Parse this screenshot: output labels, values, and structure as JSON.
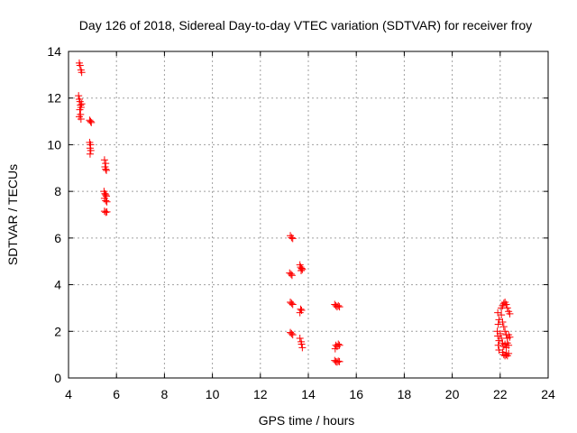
{
  "chart_data": {
    "type": "scatter",
    "title": "Day 126 of 2018, Sidereal Day-to-day VTEC variation (SDTVAR) for receiver froy",
    "xlabel": "GPS time / hours",
    "ylabel": "SDTVAR / TECUs",
    "xlim": [
      4,
      24
    ],
    "ylim": [
      0,
      14
    ],
    "xticks": [
      4,
      6,
      8,
      10,
      12,
      14,
      16,
      18,
      20,
      22,
      24
    ],
    "yticks": [
      0,
      2,
      4,
      6,
      8,
      10,
      12,
      14
    ],
    "grid": true,
    "marker": "plus",
    "color": "#ff0000",
    "series": [
      {
        "name": "SDTVAR",
        "points": [
          [
            4.45,
            13.5
          ],
          [
            4.48,
            13.4
          ],
          [
            4.52,
            13.2
          ],
          [
            4.55,
            13.1
          ],
          [
            4.42,
            12.1
          ],
          [
            4.45,
            11.95
          ],
          [
            4.48,
            11.85
          ],
          [
            4.5,
            11.7
          ],
          [
            4.52,
            11.6
          ],
          [
            4.55,
            11.75
          ],
          [
            4.47,
            11.5
          ],
          [
            4.5,
            11.3
          ],
          [
            4.45,
            11.2
          ],
          [
            4.52,
            11.1
          ],
          [
            4.88,
            11.05
          ],
          [
            4.92,
            11.0
          ],
          [
            4.95,
            10.95
          ],
          [
            4.88,
            10.1
          ],
          [
            4.92,
            10.0
          ],
          [
            4.9,
            9.85
          ],
          [
            4.93,
            9.75
          ],
          [
            4.9,
            9.6
          ],
          [
            5.5,
            9.35
          ],
          [
            5.55,
            9.2
          ],
          [
            5.52,
            9.05
          ],
          [
            5.55,
            8.95
          ],
          [
            5.58,
            8.9
          ],
          [
            5.48,
            8.0
          ],
          [
            5.52,
            7.9
          ],
          [
            5.55,
            7.85
          ],
          [
            5.58,
            7.8
          ],
          [
            5.5,
            7.7
          ],
          [
            5.55,
            7.6
          ],
          [
            5.6,
            7.55
          ],
          [
            5.5,
            7.15
          ],
          [
            5.55,
            7.1
          ],
          [
            5.6,
            7.12
          ],
          [
            13.25,
            6.1
          ],
          [
            13.3,
            6.02
          ],
          [
            13.35,
            5.98
          ],
          [
            13.22,
            4.5
          ],
          [
            13.28,
            4.45
          ],
          [
            13.32,
            4.4
          ],
          [
            13.65,
            4.85
          ],
          [
            13.68,
            4.75
          ],
          [
            13.72,
            4.7
          ],
          [
            13.75,
            4.65
          ],
          [
            13.7,
            4.6
          ],
          [
            13.25,
            3.25
          ],
          [
            13.3,
            3.2
          ],
          [
            13.35,
            3.15
          ],
          [
            13.68,
            2.95
          ],
          [
            13.72,
            2.9
          ],
          [
            13.65,
            2.8
          ],
          [
            13.25,
            1.95
          ],
          [
            13.3,
            1.9
          ],
          [
            13.35,
            1.85
          ],
          [
            13.65,
            1.7
          ],
          [
            13.7,
            1.55
          ],
          [
            13.72,
            1.45
          ],
          [
            13.75,
            1.3
          ],
          [
            15.1,
            3.15
          ],
          [
            15.15,
            3.1
          ],
          [
            15.2,
            3.05
          ],
          [
            15.25,
            3.1
          ],
          [
            15.3,
            3.05
          ],
          [
            15.15,
            1.4
          ],
          [
            15.2,
            1.35
          ],
          [
            15.25,
            1.45
          ],
          [
            15.3,
            1.4
          ],
          [
            15.12,
            1.25
          ],
          [
            15.1,
            0.75
          ],
          [
            15.15,
            0.7
          ],
          [
            15.2,
            0.68
          ],
          [
            15.25,
            0.72
          ],
          [
            15.3,
            0.7
          ],
          [
            21.9,
            2.8
          ],
          [
            21.95,
            2.5
          ],
          [
            21.92,
            2.3
          ],
          [
            21.88,
            2.0
          ],
          [
            21.9,
            1.8
          ],
          [
            21.95,
            1.6
          ],
          [
            21.92,
            1.4
          ],
          [
            21.95,
            1.2
          ],
          [
            22.05,
            3.0
          ],
          [
            22.1,
            3.1
          ],
          [
            22.15,
            3.2
          ],
          [
            22.2,
            3.25
          ],
          [
            22.25,
            3.15
          ],
          [
            22.3,
            3.0
          ],
          [
            22.35,
            2.85
          ],
          [
            22.4,
            2.75
          ],
          [
            22.05,
            2.7
          ],
          [
            22.1,
            2.4
          ],
          [
            22.15,
            2.2
          ],
          [
            22.2,
            2.0
          ],
          [
            22.25,
            1.85
          ],
          [
            22.3,
            1.7
          ],
          [
            22.35,
            1.85
          ],
          [
            22.4,
            1.75
          ],
          [
            22.0,
            1.9
          ],
          [
            22.05,
            1.7
          ],
          [
            22.1,
            1.5
          ],
          [
            22.15,
            1.35
          ],
          [
            22.2,
            1.45
          ],
          [
            22.25,
            1.3
          ],
          [
            22.3,
            1.5
          ],
          [
            22.35,
            1.4
          ],
          [
            22.1,
            1.1
          ],
          [
            22.15,
            1.0
          ],
          [
            22.2,
            0.95
          ],
          [
            22.25,
            1.0
          ],
          [
            22.3,
            0.95
          ],
          [
            22.35,
            1.05
          ]
        ]
      }
    ]
  }
}
